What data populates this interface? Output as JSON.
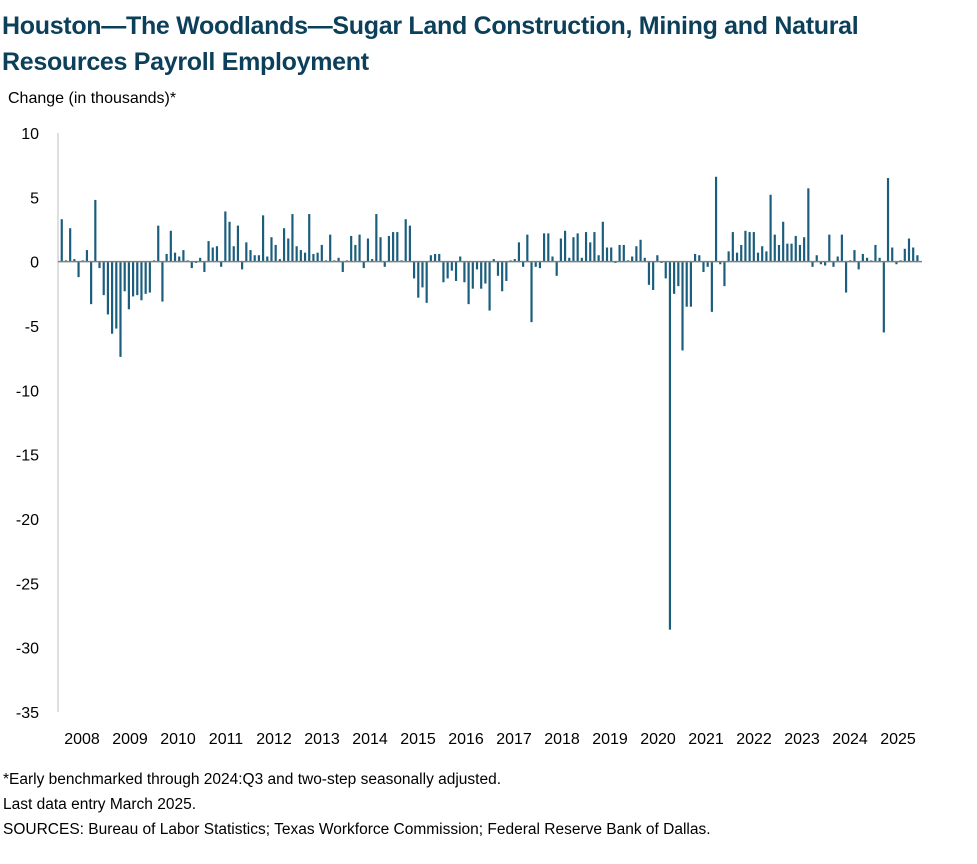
{
  "chart_data": {
    "type": "bar",
    "title": "Houston—The Woodlands—Sugar Land Construction, Mining and Natural Resources Payroll Employment",
    "ylabel": "Change (in thousands)*",
    "xlabel": "",
    "ylim": [
      -35,
      10
    ],
    "yticks": [
      10,
      5,
      0,
      -5,
      -10,
      -15,
      -20,
      -25,
      -30,
      -35
    ],
    "ytick_labels": [
      "10",
      "5",
      "0",
      "-5",
      "-10",
      "-15",
      "-20",
      "-25",
      "-30",
      "-35"
    ],
    "xtick_labels": [
      "2008",
      "2009",
      "2010",
      "2011",
      "2012",
      "2013",
      "2014",
      "2015",
      "2016",
      "2017",
      "2018",
      "2019",
      "2020",
      "2021",
      "2022",
      "2023",
      "2024",
      "2025"
    ],
    "start": "2008-01",
    "end": "2025-03",
    "bar_color": "#1a5d7c",
    "values": [
      3.3,
      0.1,
      2.6,
      0.2,
      -1.2,
      0.1,
      0.9,
      -3.3,
      4.8,
      -0.5,
      -2.6,
      -4.1,
      -5.6,
      -5.2,
      -7.4,
      -2.3,
      -3.7,
      -2.7,
      -2.6,
      -3.0,
      -2.5,
      -2.4,
      0.1,
      2.8,
      -3.1,
      0.6,
      2.4,
      0.7,
      0.4,
      0.9,
      0.1,
      -0.5,
      -0.1,
      0.3,
      -0.8,
      1.6,
      1.1,
      1.2,
      -0.4,
      3.9,
      3.1,
      1.2,
      2.8,
      -0.6,
      1.5,
      0.9,
      0.5,
      0.5,
      3.6,
      0.4,
      1.9,
      1.3,
      0.2,
      2.6,
      1.8,
      3.7,
      1.2,
      0.9,
      0.7,
      3.7,
      0.6,
      0.7,
      1.3,
      0.1,
      2.1,
      0.1,
      0.3,
      -0.8,
      0.1,
      2.0,
      1.3,
      2.1,
      -0.5,
      1.8,
      0.2,
      3.7,
      1.9,
      -0.4,
      2.0,
      2.3,
      2.3,
      0.1,
      3.3,
      2.8,
      -1.3,
      -2.8,
      -2.0,
      -3.2,
      0.5,
      0.6,
      0.6,
      -1.6,
      -1.3,
      -0.7,
      -1.5,
      0.4,
      -1.6,
      -3.3,
      -2.1,
      -0.6,
      -2.1,
      -1.7,
      -3.8,
      0.2,
      -1.1,
      -2.3,
      -1.5,
      0.1,
      0.2,
      1.5,
      -0.4,
      2.1,
      -4.7,
      -0.4,
      -0.5,
      2.2,
      2.2,
      0.4,
      -1.1,
      1.8,
      2.4,
      0.3,
      1.9,
      2.2,
      0.3,
      2.3,
      1.5,
      2.3,
      0.5,
      3.1,
      1.1,
      1.1,
      -0.1,
      1.3,
      1.3,
      0.1,
      0.4,
      1.2,
      1.7,
      0.3,
      -1.8,
      -2.2,
      0.5,
      -0.1,
      -1.3,
      -28.6,
      -2.5,
      -1.9,
      -6.9,
      -3.5,
      -3.5,
      0.6,
      0.5,
      -0.8,
      -0.4,
      -3.9,
      6.6,
      -0.2,
      -1.9,
      0.8,
      2.3,
      0.7,
      1.3,
      2.4,
      2.3,
      2.3,
      0.7,
      1.2,
      0.8,
      5.2,
      2.1,
      1.3,
      3.1,
      1.4,
      1.4,
      2.0,
      1.3,
      1.9,
      5.7,
      -0.4,
      0.5,
      -0.2,
      -0.3,
      2.1,
      -0.4,
      0.4,
      2.1,
      -2.4,
      0.1,
      0.9,
      -0.6,
      0.6,
      0.3,
      0.1,
      1.3,
      0.3,
      -5.5,
      6.5,
      1.1,
      -0.2,
      0.1,
      1.0,
      1.8,
      1.1,
      0.5
    ]
  },
  "footnotes": {
    "note": "*Early benchmarked through 2024:Q3 and two-step seasonally adjusted.",
    "last": "Last data entry March 2025.",
    "sources": "SOURCES:  Bureau of Labor Statistics; Texas Workforce Commission;  Federal Reserve Bank of Dallas."
  }
}
